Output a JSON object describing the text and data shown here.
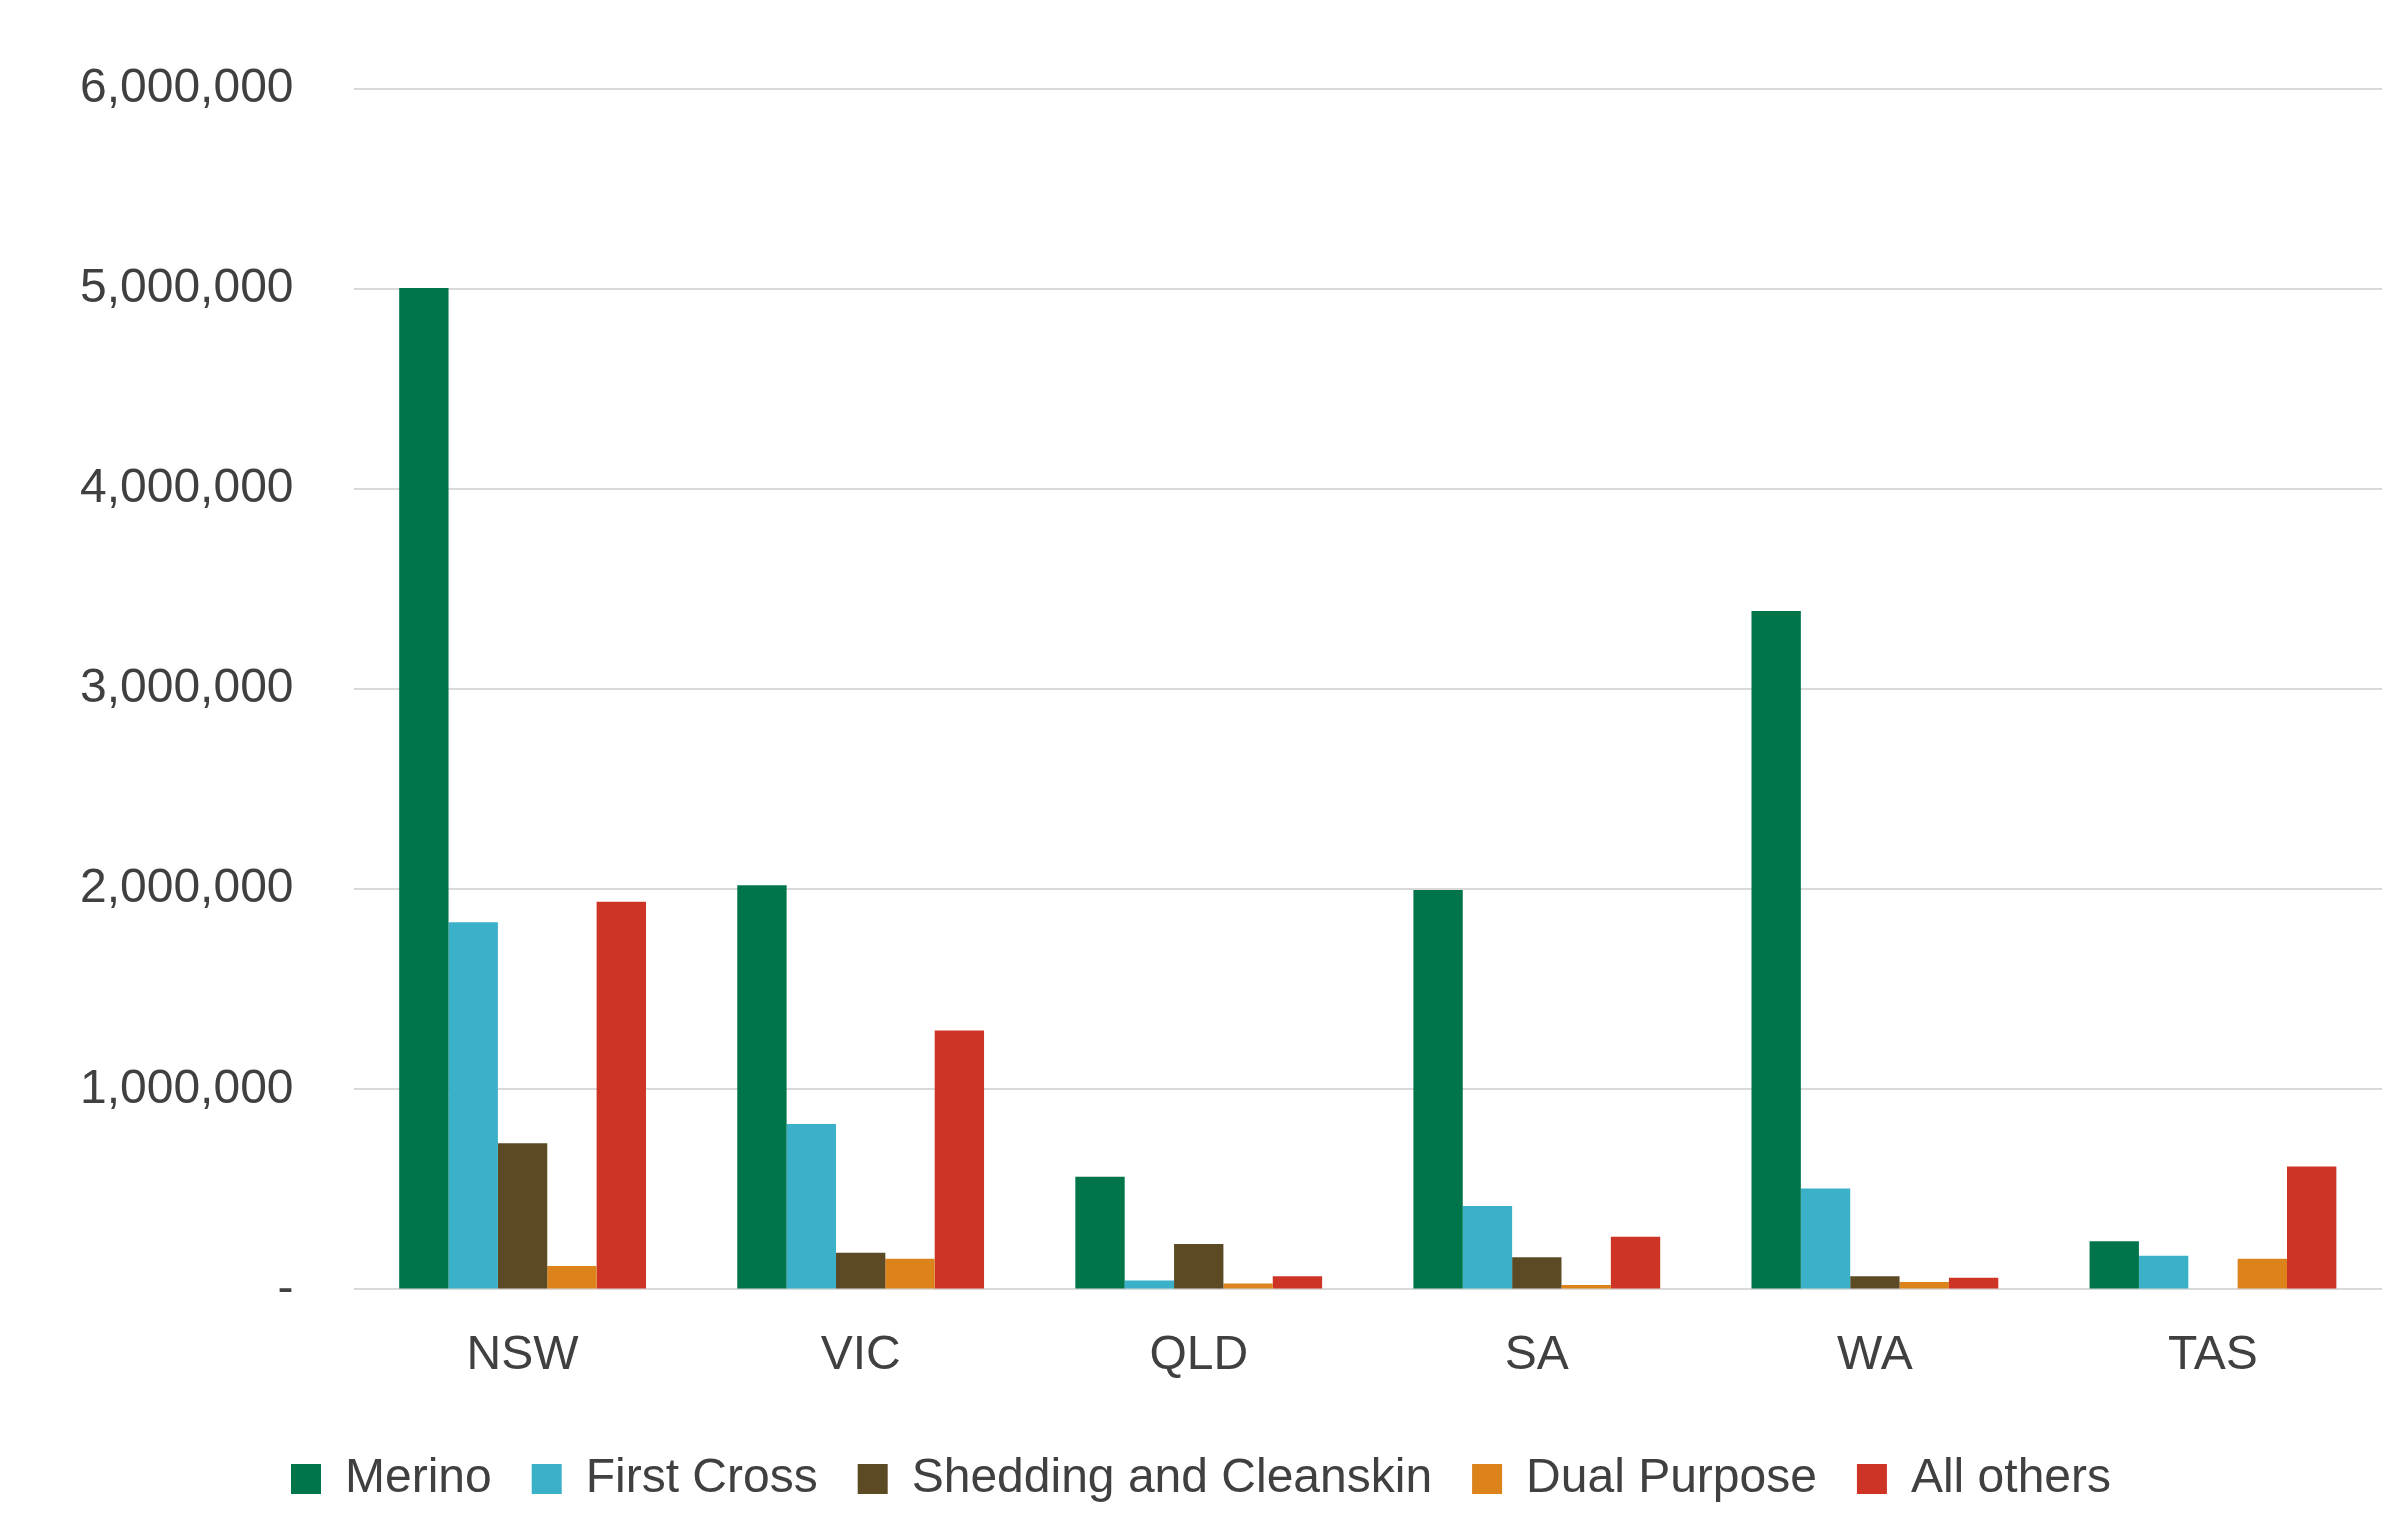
{
  "chart_data": {
    "type": "bar",
    "categories": [
      "NSW",
      "VIC",
      "QLD",
      "SA",
      "WA",
      "TAS"
    ],
    "series": [
      {
        "name": "Merino",
        "color": "#00754a",
        "values": [
          5005000,
          2020000,
          563000,
          1996000,
          3390000,
          241000
        ]
      },
      {
        "name": "First Cross",
        "color": "#3bb0c9",
        "values": [
          1835000,
          826000,
          44000,
          417000,
          504000,
          168000
        ]
      },
      {
        "name": "Shedding and Cleanskin",
        "color": "#5c4a25",
        "values": [
          730000,
          183000,
          227000,
          161000,
          66000,
          5000
        ]
      },
      {
        "name": "Dual Purpose",
        "color": "#dc831c",
        "values": [
          117000,
          153000,
          29000,
          22000,
          37000,
          153000
        ]
      },
      {
        "name": "All others",
        "color": "#cd3425",
        "values": [
          1937000,
          1294000,
          66000,
          263000,
          58000,
          614000
        ]
      }
    ],
    "ylim": [
      0,
      6000000
    ],
    "yticks": [
      {
        "value": 0,
        "label": "-"
      },
      {
        "value": 1000000,
        "label": "1,000,000"
      },
      {
        "value": 2000000,
        "label": "2,000,000"
      },
      {
        "value": 3000000,
        "label": "3,000,000"
      },
      {
        "value": 4000000,
        "label": "4,000,000"
      },
      {
        "value": 5000000,
        "label": "5,000,000"
      },
      {
        "value": 6000000,
        "label": "6,000,000"
      }
    ],
    "grid": "y",
    "legend": "bottom"
  }
}
